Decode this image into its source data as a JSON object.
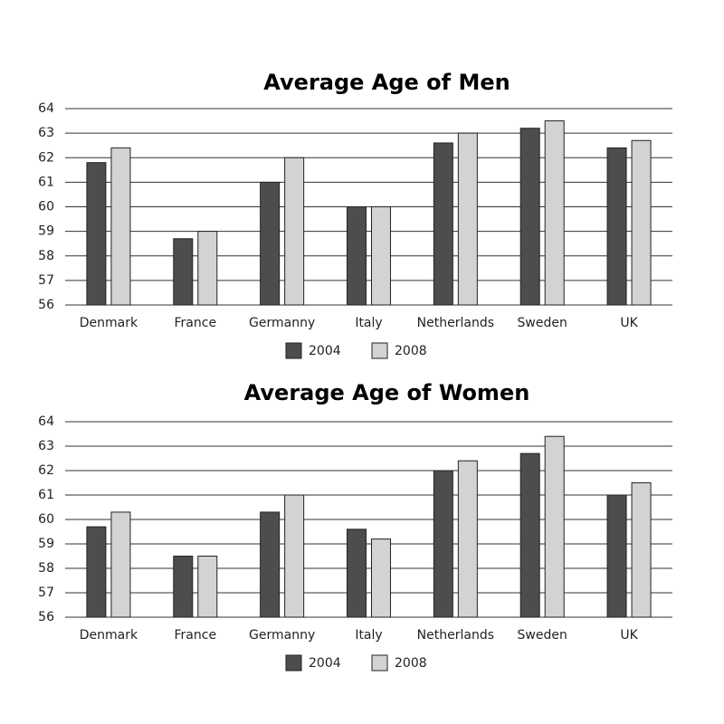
{
  "chart_data": [
    {
      "type": "bar",
      "title": "Average Age of Men",
      "categories": [
        "Denmark",
        "France",
        "Germanny",
        "Italy",
        "Netherlands",
        "Sweden",
        "UK"
      ],
      "series": [
        {
          "name": "2004",
          "color": "#4d4d4d",
          "values": [
            61.8,
            58.7,
            61.0,
            60.0,
            62.6,
            63.2,
            62.4
          ]
        },
        {
          "name": "2008",
          "color": "#d3d3d3",
          "values": [
            62.4,
            59.0,
            62.0,
            60.0,
            63.0,
            63.5,
            62.7
          ]
        }
      ],
      "ylim": [
        56,
        64
      ],
      "yticks": [
        56,
        57,
        58,
        59,
        60,
        61,
        62,
        63,
        64
      ],
      "grid": true,
      "legend": "bottom"
    },
    {
      "type": "bar",
      "title": "Average Age of Women",
      "categories": [
        "Denmark",
        "France",
        "Germanny",
        "Italy",
        "Netherlands",
        "Sweden",
        "UK"
      ],
      "series": [
        {
          "name": "2004",
          "color": "#4d4d4d",
          "values": [
            59.7,
            58.5,
            60.3,
            59.6,
            62.0,
            62.7,
            61.0
          ]
        },
        {
          "name": "2008",
          "color": "#d3d3d3",
          "values": [
            60.3,
            58.5,
            61.0,
            59.2,
            62.4,
            63.4,
            61.5
          ]
        }
      ],
      "ylim": [
        56,
        64
      ],
      "yticks": [
        56,
        57,
        58,
        59,
        60,
        61,
        62,
        63,
        64
      ],
      "grid": true,
      "legend": "bottom"
    }
  ]
}
